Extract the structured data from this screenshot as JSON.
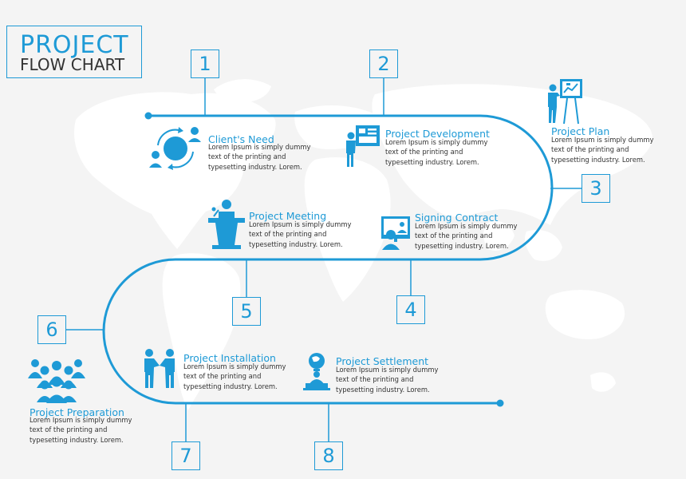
{
  "title": {
    "line1": "PROJECT",
    "line2": "FLOW CHART"
  },
  "colors": {
    "accent": "#1e9ad6",
    "text": "#333333",
    "map": "#ffffff",
    "background": "#f4f4f4"
  },
  "steps": [
    {
      "number": "1",
      "title": "Client's Need",
      "description": "Lorem Ipsum is simply dummy text of the printing and typesetting industry. Lorem.",
      "icon": "cycle-people-icon"
    },
    {
      "number": "2",
      "title": "Project Development",
      "description": "Lorem Ipsum is simply dummy text of the printing and typesetting industry. Lorem.",
      "icon": "presenter-board-icon"
    },
    {
      "number": "3",
      "title": "Project Plan",
      "description": "Lorem Ipsum is simply dummy text of the printing and typesetting industry. Lorem.",
      "icon": "easel-presenter-icon"
    },
    {
      "number": "4",
      "title": "Signing Contract",
      "description": "Lorem Ipsum is simply dummy text of the printing and typesetting industry. Lorem.",
      "icon": "video-call-icon"
    },
    {
      "number": "5",
      "title": "Project Meeting",
      "description": "Lorem Ipsum is simply dummy text of the printing and typesetting industry. Lorem.",
      "icon": "podium-speaker-icon"
    },
    {
      "number": "6",
      "title": "Project Preparation",
      "description": "Lorem Ipsum is simply dummy text of the printing and typesetting industry. Lorem.",
      "icon": "team-group-icon"
    },
    {
      "number": "7",
      "title": "Project Installation",
      "description": "Lorem Ipsum is simply dummy text of the printing and typesetting industry. Lorem.",
      "icon": "handshake-icon"
    },
    {
      "number": "8",
      "title": "Project Settlement",
      "description": "Lorem Ipsum is simply dummy text of the printing and typesetting industry. Lorem.",
      "icon": "globe-desk-icon"
    }
  ]
}
